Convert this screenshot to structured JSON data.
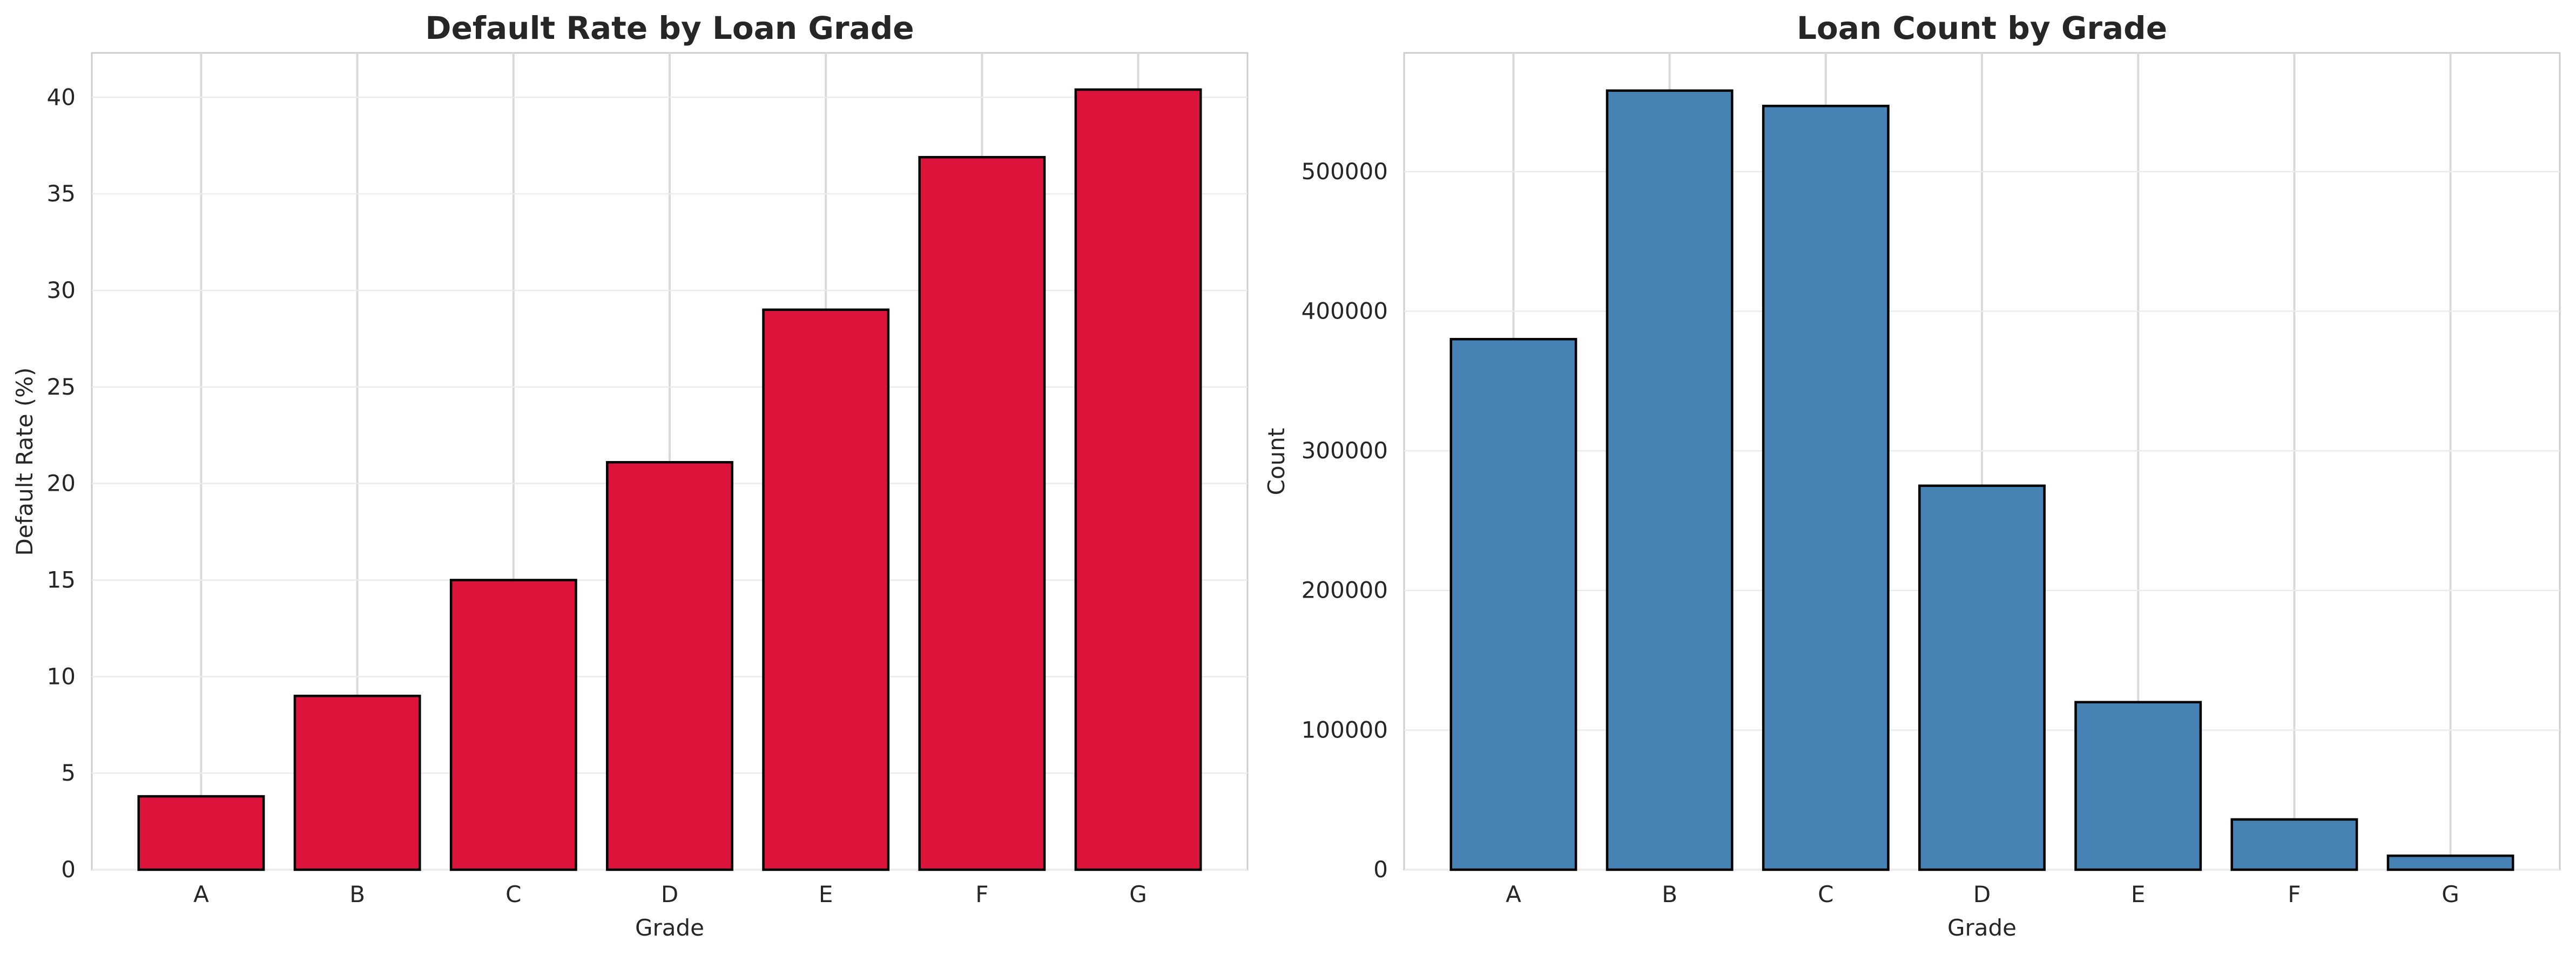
{
  "chart_data": [
    {
      "type": "bar",
      "title": "Default Rate by Loan Grade",
      "xlabel": "Grade",
      "ylabel": "Default Rate (%)",
      "categories": [
        "A",
        "B",
        "C",
        "D",
        "E",
        "F",
        "G"
      ],
      "values": [
        3.8,
        9.0,
        15.0,
        21.1,
        29.0,
        36.9,
        40.4
      ],
      "ylim": [
        0,
        42.3
      ],
      "yticks": [
        0,
        5,
        10,
        15,
        20,
        25,
        30,
        35,
        40
      ],
      "ytick_labels": [
        "0",
        "5",
        "10",
        "15",
        "20",
        "25",
        "30",
        "35",
        "40"
      ],
      "bar_color": "#DC143C",
      "grid": true,
      "legend": "none"
    },
    {
      "type": "bar",
      "title": "Loan Count by Grade",
      "xlabel": "Grade",
      "ylabel": "Count",
      "categories": [
        "A",
        "B",
        "C",
        "D",
        "E",
        "F",
        "G"
      ],
      "values": [
        380000,
        558000,
        547000,
        275000,
        120000,
        36000,
        10000
      ],
      "ylim": [
        0,
        585000
      ],
      "yticks": [
        0,
        100000,
        200000,
        300000,
        400000,
        500000
      ],
      "ytick_labels": [
        "0",
        "100000",
        "200000",
        "300000",
        "400000",
        "500000"
      ],
      "bar_color": "#4682B4",
      "grid": true,
      "legend": "none"
    }
  ]
}
